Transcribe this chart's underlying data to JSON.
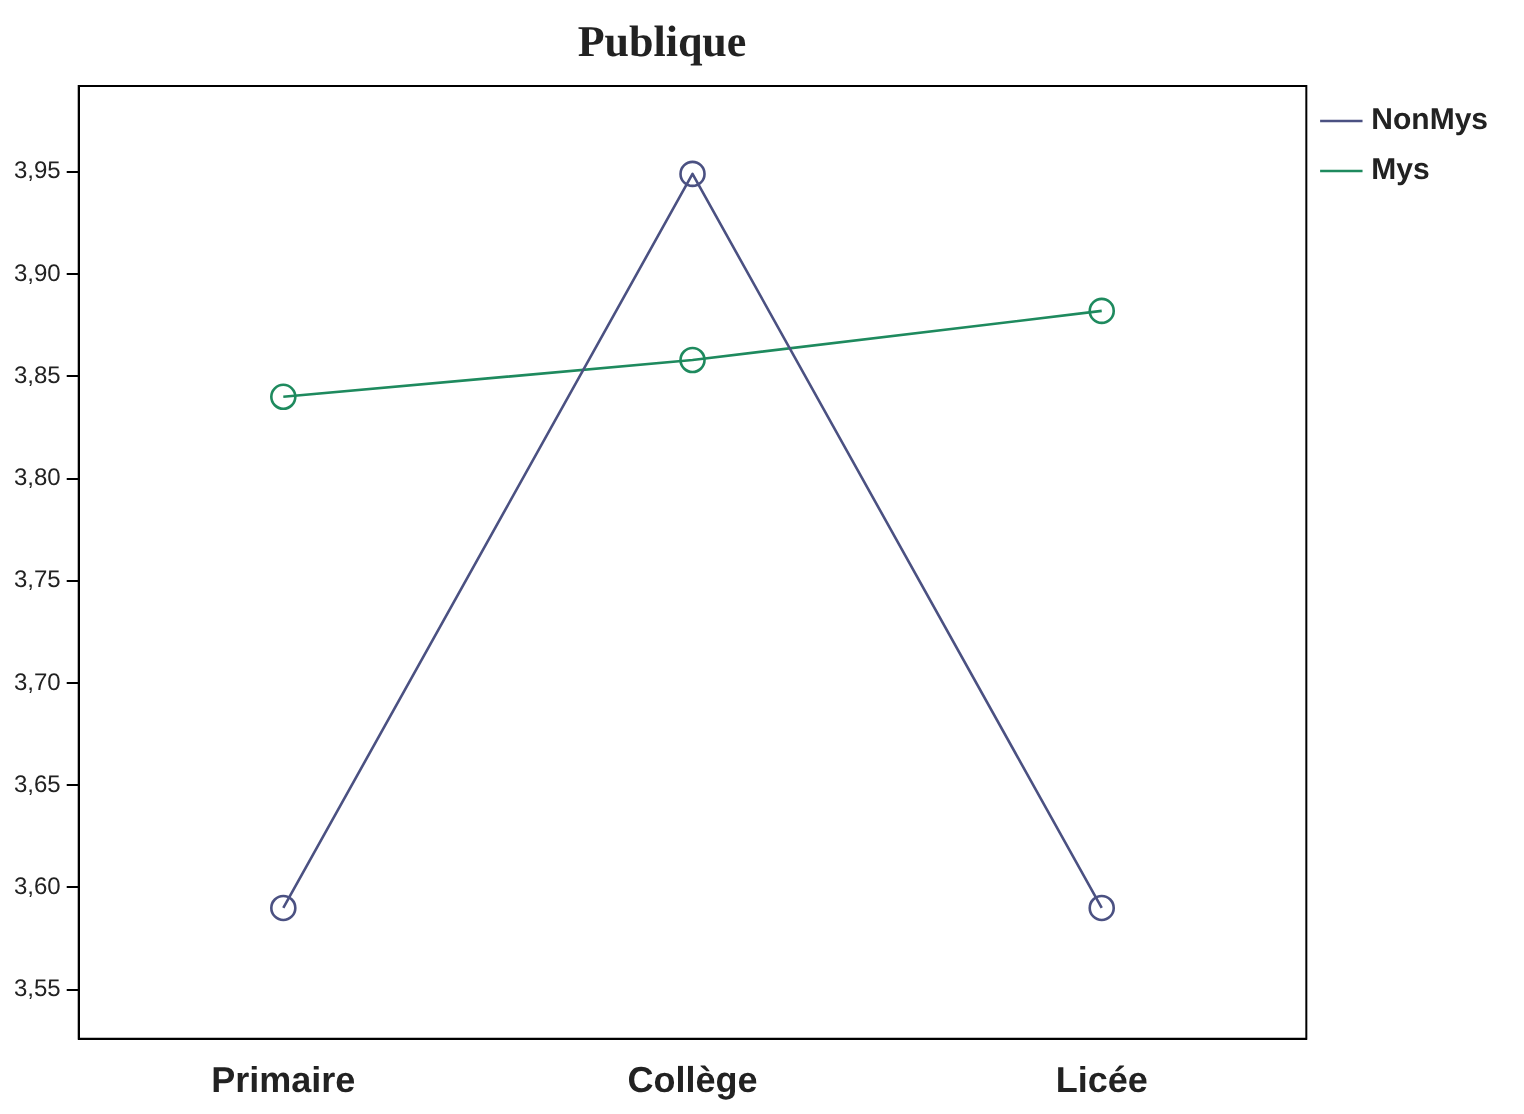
{
  "chart_data": {
    "type": "line",
    "title": "Publique",
    "categories": [
      "Primaire",
      "Collège",
      "Licée"
    ],
    "series": [
      {
        "name": "NonMys",
        "color": "#4b5182",
        "values": [
          3.59,
          3.949,
          3.59
        ]
      },
      {
        "name": "Mys",
        "color": "#1e8a5e",
        "values": [
          3.84,
          3.858,
          3.882
        ]
      }
    ],
    "ylim": [
      3.526,
      3.992
    ],
    "yticks": [
      {
        "value": 3.55,
        "label": "3,55"
      },
      {
        "value": 3.6,
        "label": "3,60"
      },
      {
        "value": 3.65,
        "label": "3,65"
      },
      {
        "value": 3.7,
        "label": "3,70"
      },
      {
        "value": 3.75,
        "label": "3,75"
      },
      {
        "value": 3.8,
        "label": "3,80"
      },
      {
        "value": 3.85,
        "label": "3,85"
      },
      {
        "value": 3.9,
        "label": "3,90"
      },
      {
        "value": 3.95,
        "label": "3,95"
      }
    ],
    "grid": false,
    "legend": "top right",
    "marker": "circle",
    "line_style": "solid"
  }
}
